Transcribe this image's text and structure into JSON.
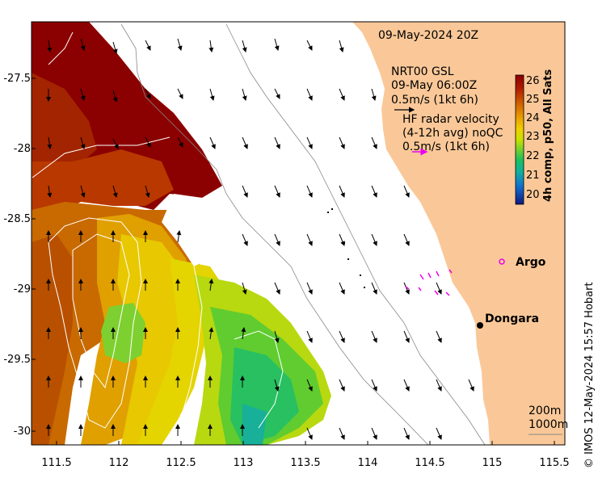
{
  "map": {
    "timestamp": "09-May-2024 20Z",
    "glider_info": {
      "product": "NRT00 GSL",
      "time": "09-May 06:00Z",
      "scale": "0.5m/s (1kt 6h)"
    },
    "hf_radar": {
      "title": "HF radar velocity",
      "avg": "(4-12h avg) noQC",
      "scale": "0.5m/s (1kt 6h)"
    },
    "colorbar": {
      "title": "4h comp, p50, All Sats",
      "ticks": [
        "26",
        "25",
        "24",
        "23",
        "22",
        "21",
        "20"
      ],
      "colors": [
        "#8b0000",
        "#c03a00",
        "#e08a00",
        "#f2d200",
        "#c8e000",
        "#5cd23c",
        "#10c070",
        "#10a8b0",
        "#1060d0",
        "#101890"
      ]
    },
    "x_ticks": [
      "111.5",
      "112",
      "112.5",
      "113",
      "113.5",
      "114",
      "114.5",
      "115",
      "115.5"
    ],
    "y_ticks": [
      "-27.5",
      "-28",
      "-28.5",
      "-29",
      "-29.5",
      "-30"
    ],
    "places": [
      {
        "name": "Argo",
        "type": "float"
      },
      {
        "name": "Dongara",
        "type": "town"
      }
    ],
    "bathymetry": [
      "200m",
      "1000m"
    ],
    "credit": "© IMOS 12-May-2024 15:57 Hobart",
    "colors": {
      "land": "#fac898",
      "argo": "#ee00ee"
    }
  }
}
